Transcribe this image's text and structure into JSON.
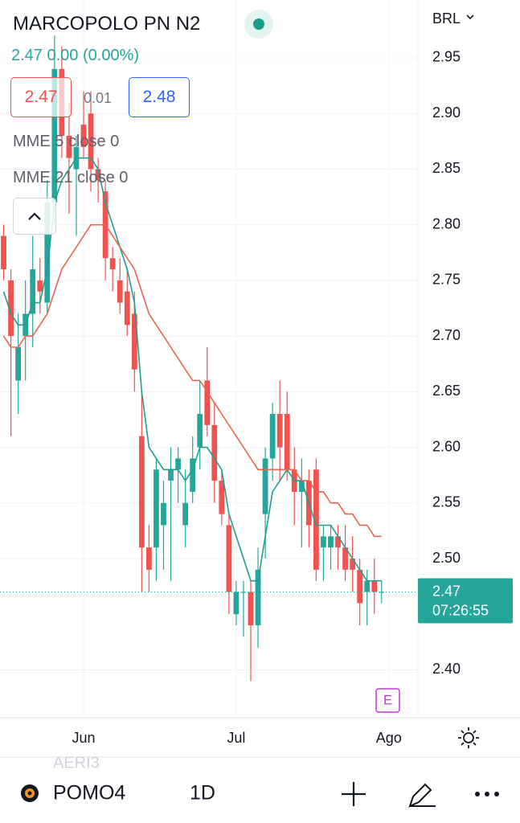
{
  "header": {
    "symbol": "MARCOPOLO PN N2",
    "currency": "BRL",
    "last": "2.47",
    "change": "0.00 (0.00%)",
    "bid": "2.47",
    "spread": "0.01",
    "ask": "2.48"
  },
  "chart_data": {
    "type": "candlestick",
    "up_color": "#26a69a",
    "down_color": "#ef5350",
    "open": [
      2.79,
      2.75,
      2.66,
      2.7,
      2.72,
      2.75,
      2.73,
      2.82,
      2.94,
      2.88,
      2.85,
      2.89,
      2.9,
      2.85,
      2.83,
      2.77,
      2.75,
      2.74,
      2.72,
      2.61,
      2.51,
      2.51,
      2.53,
      2.57,
      2.58,
      2.53,
      2.56,
      2.6,
      2.66,
      2.62,
      2.57,
      2.53,
      2.45,
      2.47,
      2.47,
      2.44,
      2.54,
      2.59,
      2.63,
      2.63,
      2.58,
      2.56,
      2.57,
      2.58,
      2.51,
      2.51,
      2.52,
      2.51,
      2.5,
      2.49,
      2.47,
      2.48,
      2.47
    ],
    "high": [
      2.8,
      2.76,
      2.72,
      2.75,
      2.79,
      2.77,
      2.84,
      2.97,
      2.96,
      2.91,
      2.88,
      2.92,
      2.92,
      2.86,
      2.84,
      2.78,
      2.77,
      2.76,
      2.74,
      2.65,
      2.53,
      2.59,
      2.57,
      2.6,
      2.6,
      2.58,
      2.61,
      2.66,
      2.69,
      2.64,
      2.58,
      2.54,
      2.48,
      2.48,
      2.48,
      2.51,
      2.6,
      2.64,
      2.66,
      2.65,
      2.6,
      2.59,
      2.58,
      2.59,
      2.53,
      2.53,
      2.53,
      2.53,
      2.52,
      2.5,
      2.49,
      2.5,
      2.48
    ],
    "low": [
      2.75,
      2.61,
      2.63,
      2.66,
      2.69,
      2.72,
      2.72,
      2.8,
      2.86,
      2.81,
      2.79,
      2.86,
      2.83,
      2.82,
      2.75,
      2.74,
      2.72,
      2.7,
      2.65,
      2.47,
      2.47,
      2.48,
      2.49,
      2.48,
      2.55,
      2.51,
      2.55,
      2.58,
      2.61,
      2.55,
      2.53,
      2.45,
      2.44,
      2.43,
      2.39,
      2.42,
      2.5,
      2.57,
      2.57,
      2.57,
      2.53,
      2.51,
      2.51,
      2.48,
      2.48,
      2.49,
      2.49,
      2.48,
      2.47,
      2.44,
      2.44,
      2.45,
      2.46
    ],
    "close": [
      2.76,
      2.7,
      2.69,
      2.72,
      2.76,
      2.74,
      2.82,
      2.94,
      2.88,
      2.86,
      2.87,
      2.87,
      2.85,
      2.84,
      2.77,
      2.76,
      2.73,
      2.71,
      2.67,
      2.51,
      2.49,
      2.58,
      2.55,
      2.58,
      2.59,
      2.55,
      2.59,
      2.63,
      2.62,
      2.57,
      2.54,
      2.47,
      2.47,
      2.47,
      2.44,
      2.49,
      2.59,
      2.63,
      2.6,
      2.58,
      2.56,
      2.57,
      2.53,
      2.49,
      2.52,
      2.52,
      2.51,
      2.49,
      2.49,
      2.46,
      2.48,
      2.47,
      2.47
    ],
    "series": [
      {
        "name": "MME 5 close 0",
        "color": "#1f9e8e",
        "values": [
          2.74,
          2.72,
          2.71,
          2.71,
          2.73,
          2.73,
          2.76,
          2.82,
          2.84,
          2.85,
          2.86,
          2.86,
          2.86,
          2.85,
          2.82,
          2.8,
          2.78,
          2.76,
          2.73,
          2.65,
          2.6,
          2.59,
          2.58,
          2.58,
          2.58,
          2.57,
          2.58,
          2.6,
          2.6,
          2.59,
          2.58,
          2.54,
          2.52,
          2.5,
          2.48,
          2.48,
          2.52,
          2.56,
          2.57,
          2.58,
          2.57,
          2.57,
          2.55,
          2.53,
          2.53,
          2.53,
          2.52,
          2.51,
          2.5,
          2.49,
          2.48,
          2.48,
          2.48
        ]
      },
      {
        "name": "MME 21 close 0",
        "color": "#f0624d",
        "values": [
          2.7,
          2.69,
          2.69,
          2.7,
          2.7,
          2.71,
          2.72,
          2.74,
          2.76,
          2.77,
          2.78,
          2.79,
          2.8,
          2.8,
          2.8,
          2.79,
          2.78,
          2.77,
          2.76,
          2.74,
          2.72,
          2.71,
          2.7,
          2.69,
          2.68,
          2.67,
          2.66,
          2.66,
          2.65,
          2.64,
          2.63,
          2.62,
          2.61,
          2.6,
          2.59,
          2.58,
          2.58,
          2.58,
          2.58,
          2.58,
          2.58,
          2.57,
          2.57,
          2.56,
          2.56,
          2.55,
          2.55,
          2.54,
          2.54,
          2.53,
          2.53,
          2.52,
          2.52
        ]
      }
    ],
    "xlim": [
      -0.5,
      57
    ],
    "xticks": [
      {
        "value": 11,
        "label": "Jun"
      },
      {
        "value": 32,
        "label": "Jul"
      },
      {
        "value": 53,
        "label": "Ago"
      }
    ],
    "ylim": [
      2.357,
      3.002
    ],
    "yticks": [
      {
        "value": 2.4,
        "label": "2.40"
      },
      {
        "value": 2.5,
        "label": "2.50"
      },
      2.55,
      {
        "value": 2.6,
        "label": "2.60"
      },
      2.65,
      {
        "value": 2.7,
        "label": "2.70"
      },
      2.75,
      {
        "value": 2.8,
        "label": "2.80"
      },
      2.85,
      {
        "value": 2.9,
        "label": "2.90"
      },
      2.95
    ],
    "grid": true,
    "last_price": 2.47,
    "countdown": "07:26:55",
    "earnings_marker": "E"
  },
  "toolbar": {
    "symbol": "POMO4",
    "interval": "1D",
    "watchlist_above": "AERI3"
  }
}
